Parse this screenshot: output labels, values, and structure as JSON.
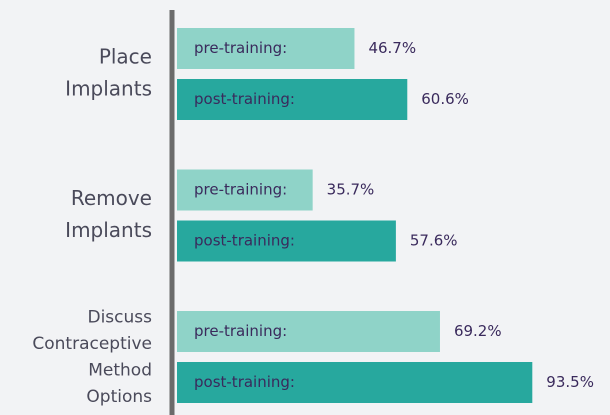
{
  "chart_data": {
    "type": "bar",
    "orientation": "horizontal",
    "categories": [
      [
        "Place",
        "Implants"
      ],
      [
        "Remove",
        "Implants"
      ],
      [
        "Discuss",
        "Contraceptive",
        "Method",
        "Options"
      ]
    ],
    "series": [
      {
        "name": "pre-training:",
        "color": "#8fd3c8",
        "values": [
          46.7,
          35.7,
          69.2
        ],
        "value_labels": [
          "46.7%",
          "35.7%",
          "69.2%"
        ]
      },
      {
        "name": "post-training:",
        "color": "#27a89e",
        "values": [
          60.6,
          57.6,
          93.5
        ],
        "value_labels": [
          "60.6%",
          "57.6%",
          "93.5%"
        ]
      }
    ]
  }
}
